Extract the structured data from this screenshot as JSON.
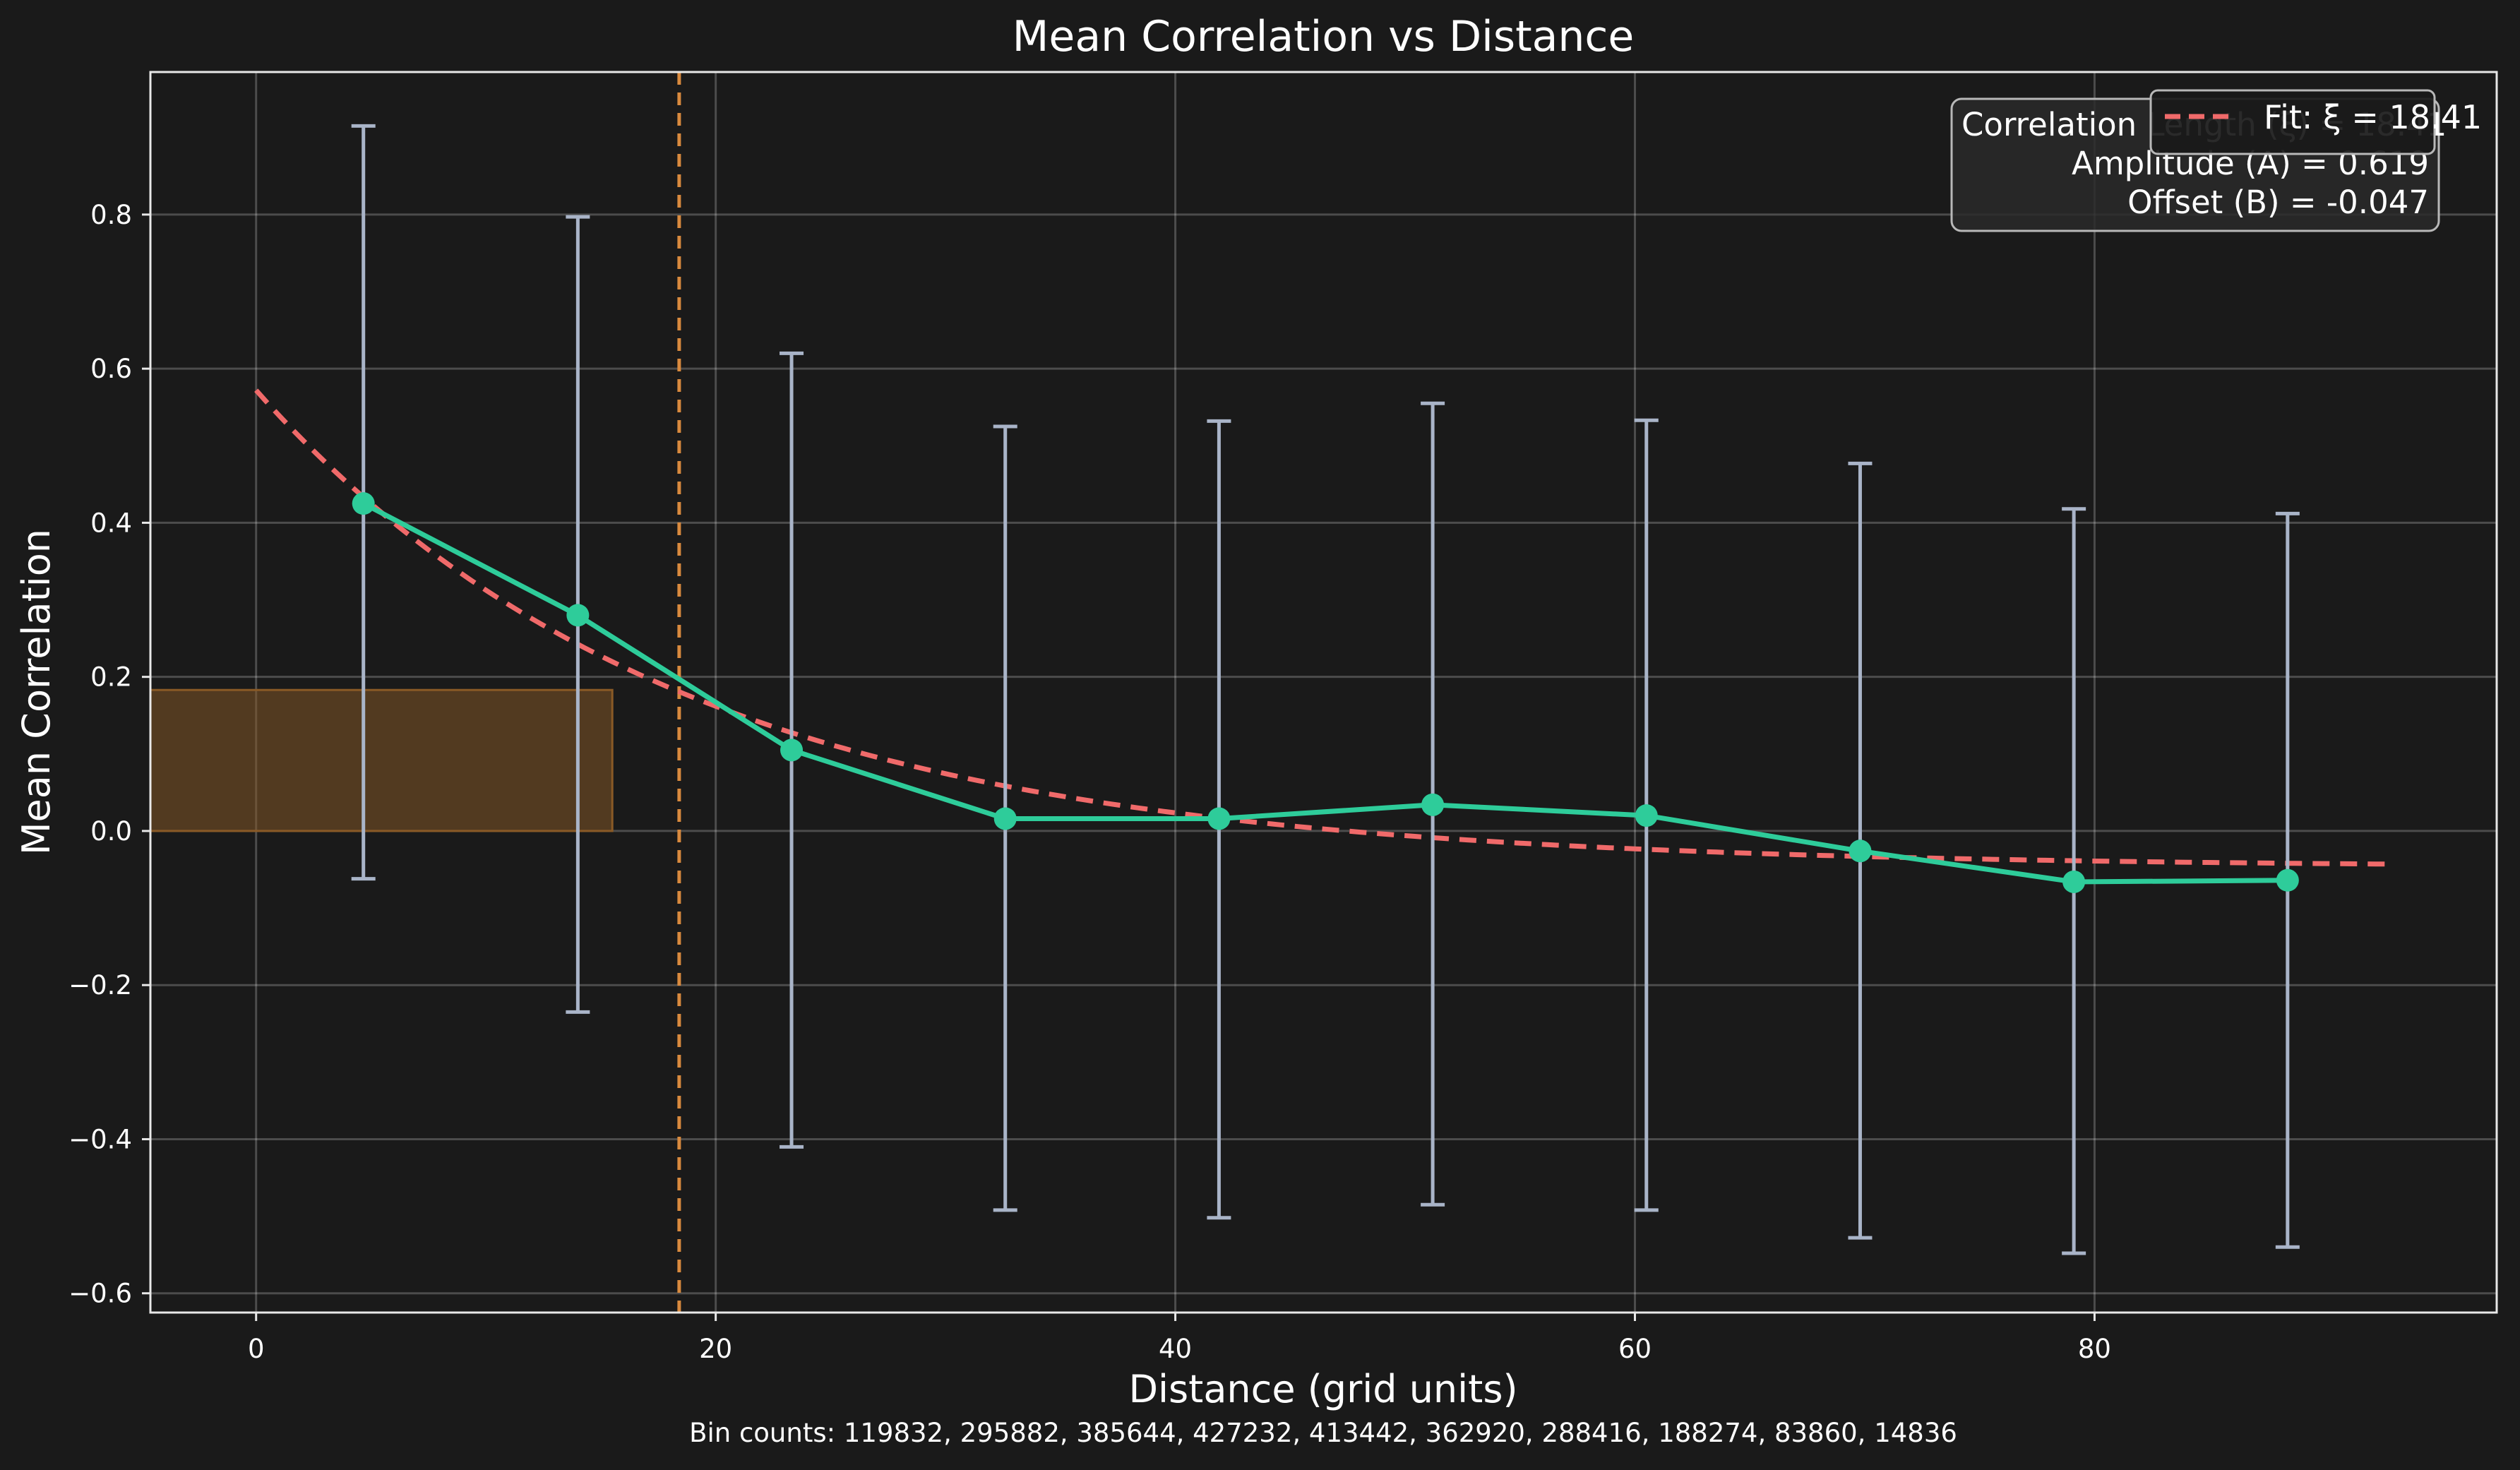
{
  "chart_data": {
    "type": "line",
    "title": "Mean Correlation vs Distance",
    "xlabel": "Distance (grid units)",
    "ylabel": "Mean Correlation",
    "footer": "Bin counts: 119832, 295882, 385644, 427232, 413442, 362920, 288416, 188274, 83860, 14836",
    "xlim": [
      -4.6,
      97.5
    ],
    "ylim": [
      -0.625,
      0.985
    ],
    "xticks": [
      0,
      20,
      40,
      60,
      80
    ],
    "xtick_labels": [
      "0",
      "20",
      "40",
      "60",
      "80"
    ],
    "yticks": [
      -0.6,
      -0.4,
      -0.2,
      0.0,
      0.2,
      0.4,
      0.6,
      0.8
    ],
    "ytick_labels": [
      "−0.6",
      "−0.4",
      "−0.2",
      "0.0",
      "0.2",
      "0.4",
      "0.6",
      "0.8"
    ],
    "grid": true,
    "series": [
      {
        "name": "",
        "color": "#2ecc9a",
        "x": [
          4.67,
          14.0,
          23.3,
          32.6,
          41.9,
          51.2,
          60.5,
          69.8,
          79.1,
          88.4
        ],
        "y": [
          0.425,
          0.28,
          0.105,
          0.016,
          0.016,
          0.034,
          0.02,
          -0.026,
          -0.066,
          -0.064
        ],
        "yerr_low": [
          -0.062,
          -0.235,
          -0.41,
          -0.492,
          -0.502,
          -0.485,
          -0.492,
          -0.528,
          -0.548,
          -0.54
        ],
        "yerr_high": [
          0.915,
          0.797,
          0.62,
          0.525,
          0.532,
          0.555,
          0.533,
          0.477,
          0.418,
          0.412
        ],
        "errcolor": "#a9b4c8"
      }
    ],
    "fit": {
      "name": "Fit: ξ = 18.41",
      "color": "#f06a6a",
      "xi": 18.41,
      "amplitude": 0.619,
      "offset": -0.047,
      "x_range": [
        0,
        93
      ]
    },
    "vline": {
      "x": 18.41,
      "color": "#d98a3e"
    },
    "shaded_region": {
      "x": [
        -4.6,
        15.5
      ],
      "y": [
        0.0,
        0.183
      ],
      "color": "#8a5a26"
    },
    "legend": {
      "label": "Fit: ξ = 18.41",
      "position": "top-right"
    },
    "annotation": {
      "lines": [
        "Correlation Length (ξ) = 18.41",
        "Amplitude (A) = 0.619",
        "Offset (B) = -0.047"
      ],
      "position": "top-right"
    }
  }
}
